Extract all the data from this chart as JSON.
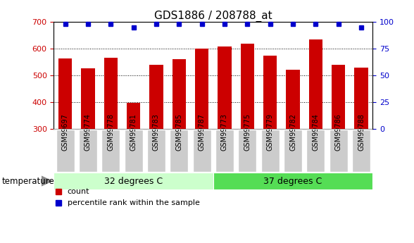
{
  "title": "GDS1886 / 208788_at",
  "categories": [
    "GSM99697",
    "GSM99774",
    "GSM99778",
    "GSM99781",
    "GSM99783",
    "GSM99785",
    "GSM99787",
    "GSM99773",
    "GSM99775",
    "GSM99779",
    "GSM99782",
    "GSM99784",
    "GSM99786",
    "GSM99788"
  ],
  "bar_values": [
    563,
    527,
    566,
    397,
    540,
    561,
    601,
    608,
    618,
    573,
    521,
    633,
    540,
    528
  ],
  "percentile_values": [
    98,
    98,
    98,
    95,
    98,
    98,
    98,
    98,
    98,
    98,
    98,
    98,
    98,
    95
  ],
  "bar_color": "#cc0000",
  "percentile_color": "#0000cc",
  "ylim_left": [
    300,
    700
  ],
  "ylim_right": [
    0,
    100
  ],
  "yticks_left": [
    300,
    400,
    500,
    600,
    700
  ],
  "yticks_right": [
    0,
    25,
    50,
    75,
    100
  ],
  "group1_label": "32 degrees C",
  "group2_label": "37 degrees C",
  "group1_count": 7,
  "group2_count": 7,
  "group1_color": "#ccffcc",
  "group2_color": "#55dd55",
  "xlabel_label": "temperature",
  "legend_count_label": "count",
  "legend_percentile_label": "percentile rank within the sample",
  "tick_label_bg": "#cccccc",
  "background_color": "#ffffff",
  "title_fontsize": 11,
  "tick_fontsize": 8,
  "label_fontsize": 7,
  "group_fontsize": 9
}
